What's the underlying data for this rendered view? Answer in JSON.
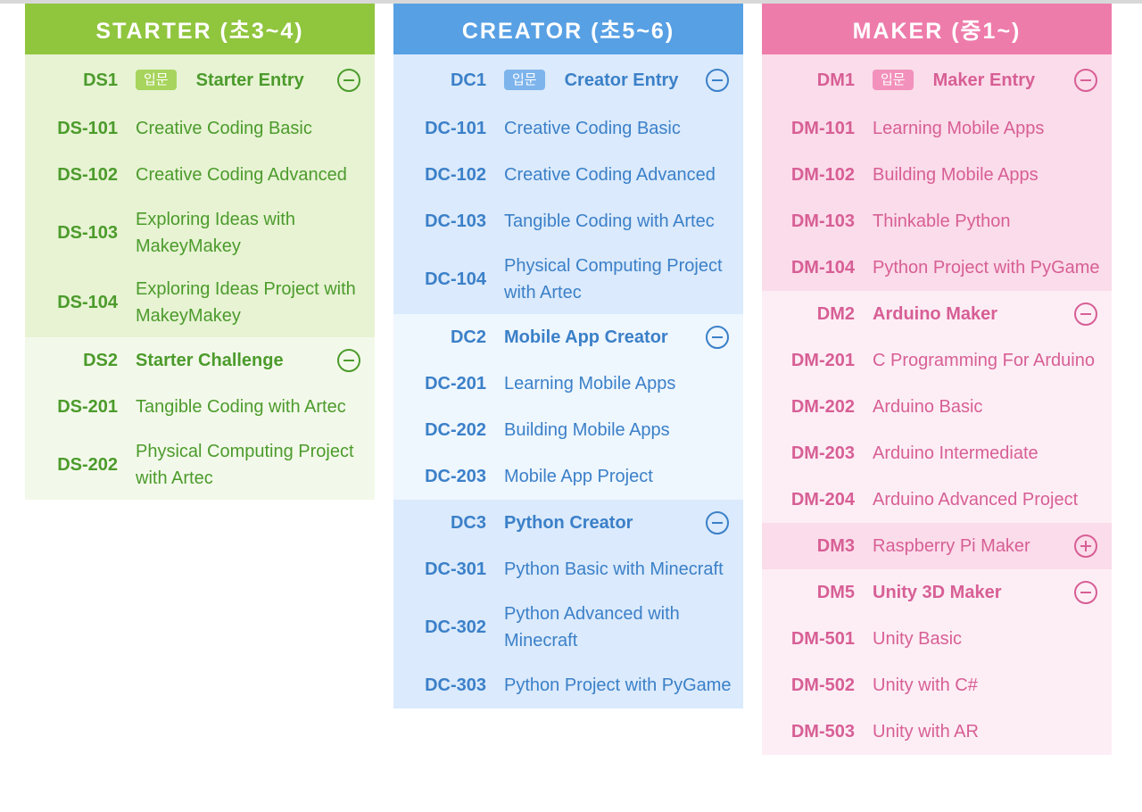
{
  "page": {
    "background": "#ffffff",
    "top_strip_color": "#d8d8d8"
  },
  "columns": [
    {
      "header": "STARTER (초3~4)",
      "theme": {
        "header_bg": "#90c53e",
        "header_text": "#ffffff",
        "text": "#4c9b2c",
        "section_bg_a": "#e7f3d3",
        "section_bg_b": "#f3f9ea",
        "badge_bg": "#a7d45c"
      },
      "sections": [
        {
          "code": "DS1",
          "title": "Starter Entry",
          "badge": "입문",
          "icon": "minus-circle",
          "title_bold": true,
          "courses": [
            {
              "code": "DS-101",
              "title": "Creative Coding Basic"
            },
            {
              "code": "DS-102",
              "title": "Creative Coding Advanced"
            },
            {
              "code": "DS-103",
              "title": "Exploring Ideas with MakeyMakey"
            },
            {
              "code": "DS-104",
              "title": "Exploring Ideas Project with MakeyMakey"
            }
          ]
        },
        {
          "code": "DS2",
          "title": "Starter Challenge",
          "icon": "minus-circle",
          "title_bold": true,
          "courses": [
            {
              "code": "DS-201",
              "title": "Tangible Coding with Artec"
            },
            {
              "code": "DS-202",
              "title": "Physical Computing Project with Artec"
            }
          ]
        }
      ]
    },
    {
      "header": "CREATOR (초5~6)",
      "theme": {
        "header_bg": "#58a0e4",
        "header_text": "#ffffff",
        "text": "#3b80c8",
        "section_bg_a": "#dbeafc",
        "section_bg_b": "#eef6fe",
        "badge_bg": "#7db4ec"
      },
      "sections": [
        {
          "code": "DC1",
          "title": "Creator Entry",
          "badge": "입문",
          "icon": "minus-circle",
          "title_bold": true,
          "courses": [
            {
              "code": "DC-101",
              "title": "Creative Coding Basic"
            },
            {
              "code": "DC-102",
              "title": "Creative Coding Advanced"
            },
            {
              "code": "DC-103",
              "title": "Tangible Coding with Artec"
            },
            {
              "code": "DC-104",
              "title": "Physical Computing Project with Artec"
            }
          ]
        },
        {
          "code": "DC2",
          "title": "Mobile App Creator",
          "icon": "minus-circle",
          "title_bold": true,
          "courses": [
            {
              "code": "DC-201",
              "title": "Learning Mobile Apps"
            },
            {
              "code": "DC-202",
              "title": "Building Mobile Apps"
            },
            {
              "code": "DC-203",
              "title": "Mobile App Project"
            }
          ]
        },
        {
          "code": "DC3",
          "title": "Python Creator",
          "icon": "minus-circle",
          "title_bold": true,
          "courses": [
            {
              "code": "DC-301",
              "title": "Python Basic with Minecraft"
            },
            {
              "code": "DC-302",
              "title": "Python Advanced with Minecraft"
            },
            {
              "code": "DC-303",
              "title": "Python Project with PyGame"
            }
          ]
        }
      ]
    },
    {
      "header": "MAKER (중1~)",
      "theme": {
        "header_bg": "#ee7cab",
        "header_text": "#ffffff",
        "text": "#d75f95",
        "section_bg_a": "#fbdcea",
        "section_bg_b": "#fdeef5",
        "badge_bg": "#f291bb"
      },
      "sections": [
        {
          "code": "DM1",
          "title": "Maker Entry",
          "badge": "입문",
          "icon": "minus-circle",
          "title_bold": true,
          "courses": [
            {
              "code": "DM-101",
              "title": "Learning Mobile Apps"
            },
            {
              "code": "DM-102",
              "title": "Building Mobile Apps"
            },
            {
              "code": "DM-103",
              "title": "Thinkable Python"
            },
            {
              "code": "DM-104",
              "title": "Python Project with PyGame"
            }
          ]
        },
        {
          "code": "DM2",
          "title": "Arduino Maker",
          "icon": "minus-circle",
          "title_bold": true,
          "courses": [
            {
              "code": "DM-201",
              "title": "C Programming For Arduino"
            },
            {
              "code": "DM-202",
              "title": "Arduino Basic"
            },
            {
              "code": "DM-203",
              "title": "Arduino Intermediate"
            },
            {
              "code": "DM-204",
              "title": "Arduino Advanced Project"
            }
          ]
        },
        {
          "code": "DM3",
          "title": "Raspberry Pi Maker",
          "icon": "plus-circle",
          "title_bold": false,
          "courses": []
        },
        {
          "code": "DM5",
          "title": "Unity 3D Maker",
          "icon": "minus-circle",
          "title_bold": true,
          "courses": [
            {
              "code": "DM-501",
              "title": "Unity Basic"
            },
            {
              "code": "DM-502",
              "title": "Unity with C#"
            },
            {
              "code": "DM-503",
              "title": "Unity with AR"
            }
          ]
        }
      ]
    }
  ]
}
